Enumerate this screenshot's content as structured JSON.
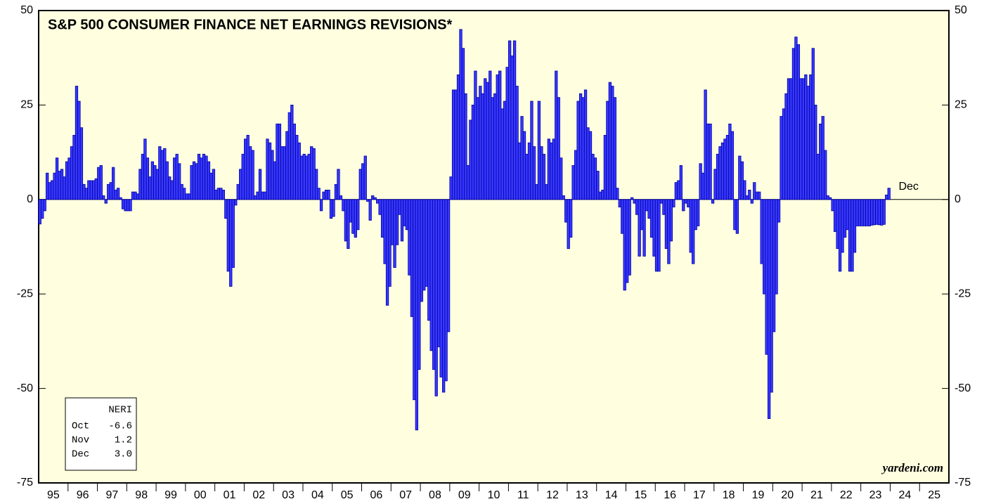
{
  "chart_data": {
    "type": "bar",
    "title": "S&P 500 CONSUMER FINANCE NET EARNINGS REVISIONS*",
    "credit": "yardeni.com",
    "annotation": "Dec",
    "color": "#3838ff",
    "categories": [
      "95",
      "96",
      "97",
      "98",
      "99",
      "00",
      "01",
      "02",
      "03",
      "04",
      "05",
      "06",
      "07",
      "08",
      "09",
      "10",
      "11",
      "12",
      "13",
      "14",
      "15",
      "16",
      "17",
      "18",
      "19",
      "20",
      "21",
      "22",
      "23",
      "24",
      "25"
    ],
    "values": [
      [
        -6.5,
        -5,
        -3,
        7,
        4.5,
        5,
        7,
        11,
        7.5,
        8,
        6,
        10
      ],
      [
        11,
        14,
        17,
        30,
        26,
        19,
        4,
        3,
        5,
        5,
        5,
        5.5
      ],
      [
        8.5,
        9,
        1,
        -1,
        4,
        4.5,
        8.5,
        2.5,
        3,
        0.5,
        -2.5,
        -3
      ],
      [
        -3,
        -3,
        2,
        2,
        1.5,
        8,
        12,
        16,
        11,
        6,
        10,
        9
      ],
      [
        8,
        14,
        13,
        13.5,
        10,
        6,
        5,
        11,
        12,
        9.5,
        4,
        3
      ],
      [
        1.5,
        1.5,
        9,
        10,
        9.5,
        12,
        11,
        12,
        11.5,
        10,
        7,
        8
      ],
      [
        2.5,
        3,
        3,
        2.5,
        -5,
        -19,
        -23,
        -18,
        -1.5,
        4,
        8,
        12
      ],
      [
        16,
        17,
        14,
        13,
        1,
        2,
        8,
        2,
        2,
        16,
        15,
        13
      ],
      [
        10,
        20,
        20,
        14,
        14,
        18,
        23,
        25,
        20,
        17,
        15,
        11.5
      ],
      [
        12,
        11.5,
        12,
        14,
        13.5,
        8,
        3,
        -3,
        2,
        2.5,
        2.5,
        -5
      ],
      [
        -4.5,
        4,
        8,
        1,
        -3,
        -11,
        -13,
        -6,
        -9,
        -10,
        -8,
        8
      ],
      [
        9.5,
        11.5,
        -0.5,
        -5.5,
        1,
        0.5,
        -1,
        -4,
        -10,
        -17,
        -28,
        -23
      ],
      [
        -12,
        -18,
        -12,
        -4,
        -11,
        -7,
        -8,
        -20,
        -31,
        -53,
        -61,
        -45
      ],
      [
        -27,
        -24,
        -23,
        -32,
        -40,
        -45,
        -52,
        -39,
        -47,
        -51,
        -48,
        -35
      ],
      [
        6,
        29,
        29,
        33,
        45,
        40,
        28,
        9,
        21,
        25,
        34,
        27
      ],
      [
        30,
        28,
        32,
        31,
        34,
        27,
        28,
        33,
        34,
        24,
        26,
        35
      ],
      [
        42,
        38,
        42,
        30,
        15,
        22,
        18,
        12,
        15,
        26,
        14,
        4
      ],
      [
        26,
        14,
        12,
        4,
        16,
        15,
        16,
        34,
        27,
        11,
        1,
        -6
      ],
      [
        -13,
        -10,
        9,
        13,
        26,
        28,
        27,
        29,
        19,
        18,
        12,
        11
      ],
      [
        7.5,
        2,
        2.5,
        17,
        26,
        31,
        30,
        27,
        3,
        -2,
        -9,
        -24
      ],
      [
        -22,
        -20,
        0.5,
        -1,
        -4,
        -15,
        -8,
        -15,
        -3,
        -5,
        -10,
        -15
      ],
      [
        -19,
        -19,
        -1,
        -4,
        -13,
        -17,
        -11,
        -2,
        4.5,
        5,
        9,
        -3
      ],
      [
        -1,
        -2,
        -14,
        -17,
        -8,
        -7,
        9.5,
        7,
        29,
        20,
        20,
        -1
      ],
      [
        8,
        12,
        14,
        15,
        16,
        17,
        20,
        18,
        -8,
        -9,
        11.5,
        10
      ],
      [
        5,
        1,
        2.5,
        -1,
        4.5,
        2,
        2,
        -17,
        -25,
        -41,
        -58,
        -51
      ],
      [
        -35,
        -25,
        -6,
        22,
        24,
        28,
        32,
        32,
        40,
        43,
        41,
        32
      ],
      [
        32,
        33,
        30,
        33,
        40,
        25,
        12,
        20,
        22,
        13,
        1,
        0.5
      ],
      [
        -3,
        -8.5,
        -13,
        -19,
        -14,
        -10,
        -8,
        -19,
        -19,
        -14,
        -7,
        -7
      ],
      [
        -7,
        -7,
        -7,
        -7,
        -6.8,
        -6.7,
        -6.6,
        -6.7,
        -6.8,
        -6.6,
        1.2,
        3.0
      ],
      [],
      []
    ],
    "ylim": [
      -75,
      50
    ],
    "yticks": [
      50,
      25,
      0,
      -25,
      -50,
      -75
    ],
    "legend_box": {
      "title": "NERI",
      "rows": [
        {
          "month": "Oct",
          "value": "-6.6"
        },
        {
          "month": "Nov",
          "value": "1.2"
        },
        {
          "month": "Dec",
          "value": "3.0"
        }
      ]
    }
  }
}
